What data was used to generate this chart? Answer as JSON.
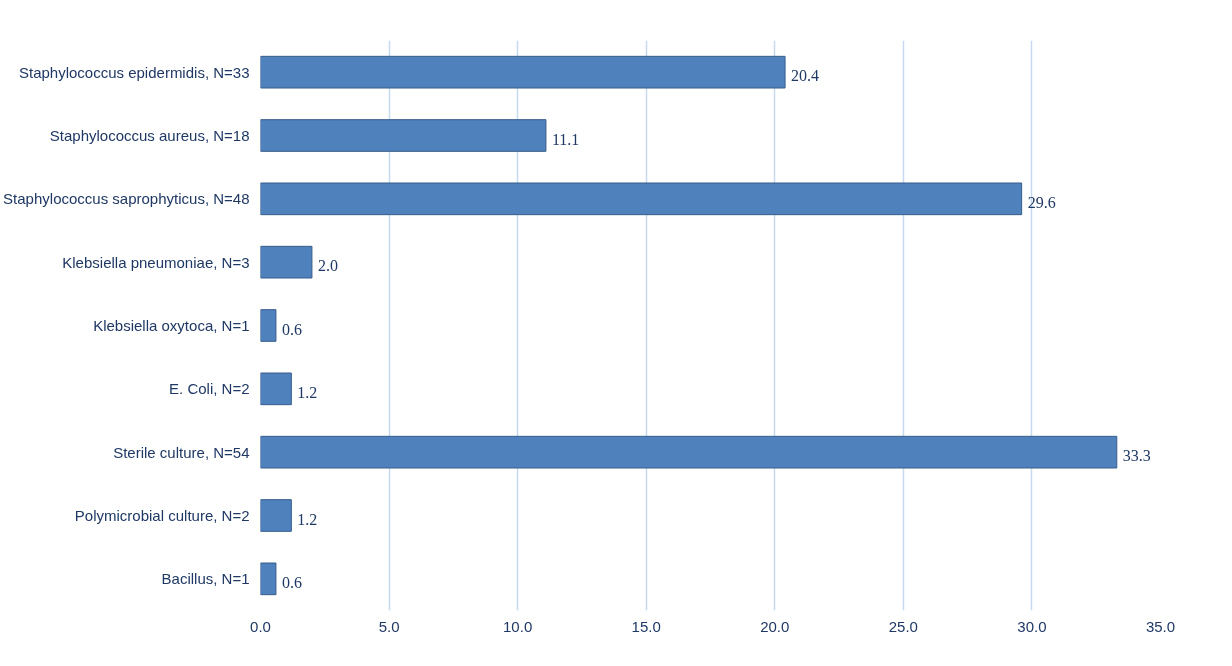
{
  "chart_data": {
    "type": "bar",
    "orientation": "horizontal",
    "categories": [
      "Staphylococcus epidermidis, N=33",
      "Staphylococcus aureus, N=18",
      "Staphylococcus saprophyticus, N=48",
      "Klebsiella pneumoniae, N=3",
      "Klebsiella oxytoca, N=1",
      "E. Coli, N=2",
      "Sterile culture, N=54",
      "Polymicrobial culture, N=2",
      "Bacillus, N=1"
    ],
    "values": [
      20.4,
      11.1,
      29.6,
      2.0,
      0.6,
      1.2,
      33.3,
      1.2,
      0.6
    ],
    "value_labels": [
      "20.4",
      "11.1",
      "29.6",
      "2.0",
      "0.6",
      "1.2",
      "33.3",
      "1.2",
      "0.6"
    ],
    "color": "#4f81bd",
    "xlim": [
      0,
      35
    ],
    "xticks": [
      {
        "value": 0,
        "label": "0.0"
      },
      {
        "value": 5,
        "label": "5.0"
      },
      {
        "value": 10,
        "label": "10.0"
      },
      {
        "value": 15,
        "label": "15.0"
      },
      {
        "value": 20,
        "label": "20.0"
      },
      {
        "value": 25,
        "label": "25.0"
      },
      {
        "value": 30,
        "label": "30.0"
      },
      {
        "value": 35,
        "label": "35.0"
      }
    ],
    "grid": "x"
  }
}
